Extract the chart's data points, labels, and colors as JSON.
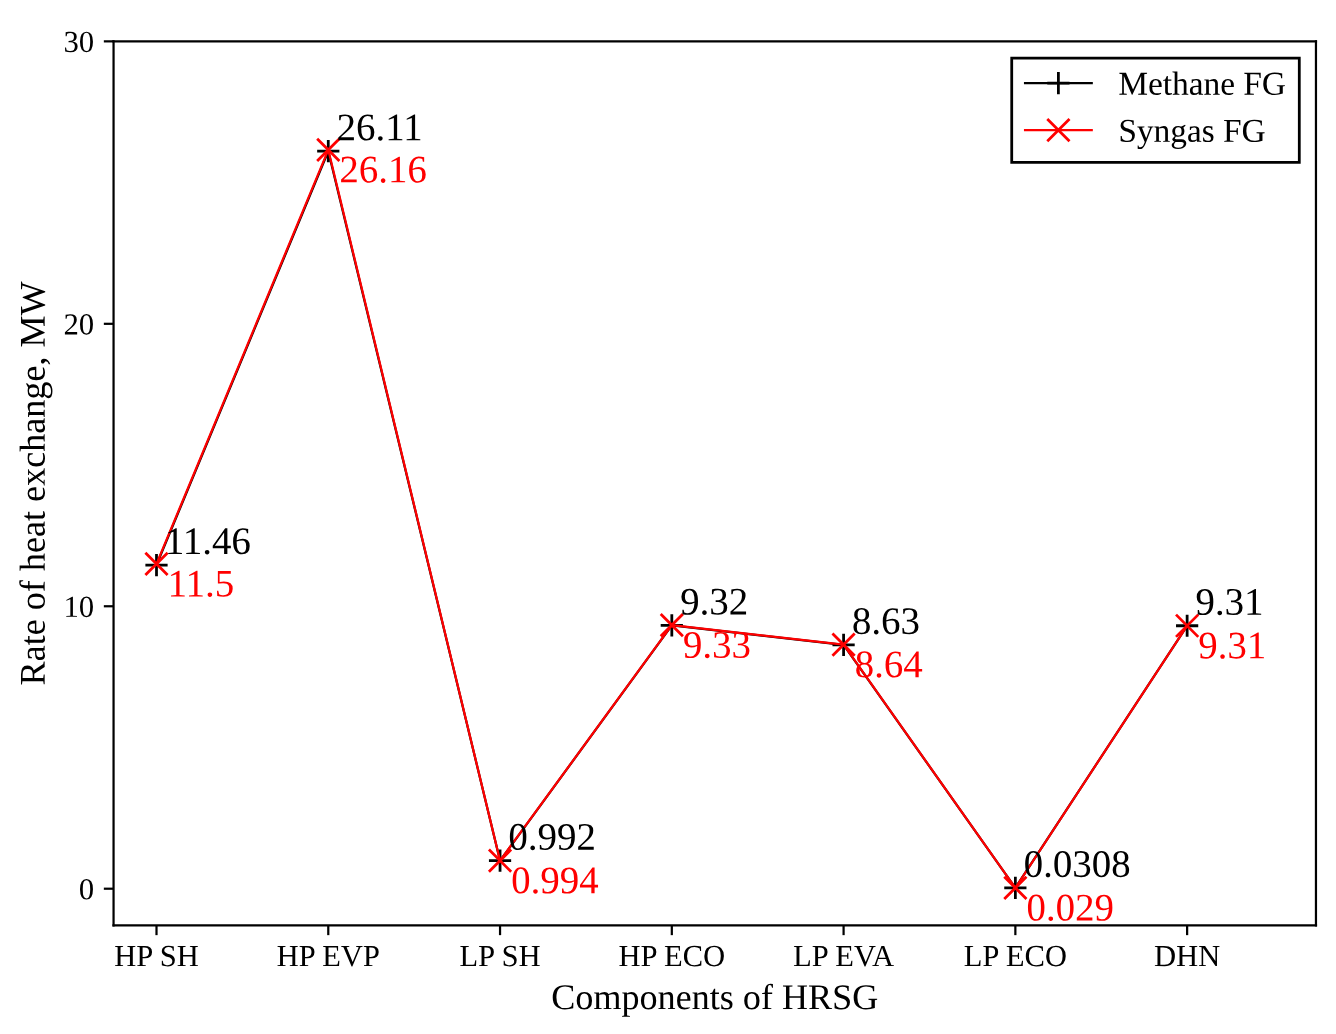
{
  "chart_data": {
    "type": "line",
    "xlabel": "Components of HRSG",
    "ylabel": "Rate of heat exchange, MW",
    "categories": [
      "HP SH",
      "HP EVP",
      "LP SH",
      "HP ECO",
      "LP EVA",
      "LP ECO",
      "DHN"
    ],
    "series": [
      {
        "name": "Methane FG",
        "color": "#000000",
        "marker": "plus",
        "values": [
          11.46,
          26.11,
          0.992,
          9.32,
          8.63,
          0.0308,
          9.31
        ]
      },
      {
        "name": "Syngas FG",
        "color": "#ff0000",
        "marker": "cross",
        "values": [
          11.5,
          26.16,
          0.994,
          9.33,
          8.64,
          0.029,
          9.31
        ]
      }
    ],
    "ylim": [
      -1.3,
      30
    ],
    "yticks": [
      0,
      10,
      20,
      30
    ],
    "grid": false,
    "legend": "top right",
    "data_labels": true,
    "line_style": "solid"
  }
}
